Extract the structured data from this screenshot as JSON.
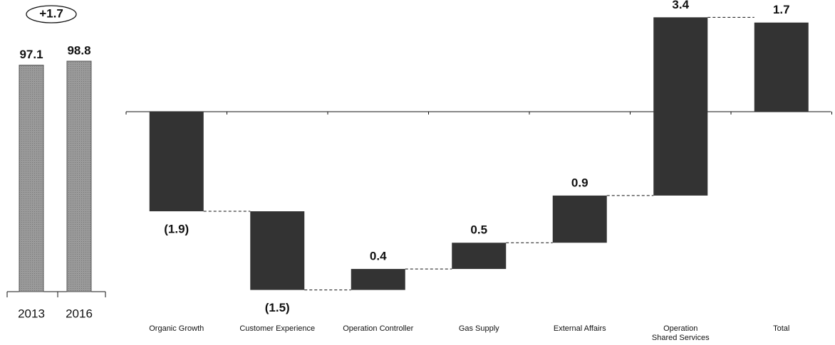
{
  "chart_data": [
    {
      "type": "bar",
      "categories": [
        "2013",
        "2016"
      ],
      "values": [
        97.1,
        98.8
      ],
      "annotation": "+1.7",
      "color": "#9a9a9a"
    },
    {
      "type": "waterfall",
      "categories": [
        "Organic Growth",
        "Customer Experience",
        "Operation Controller",
        "Gas Supply",
        "External Affairs",
        "Operation\nShared Services",
        "Total"
      ],
      "values": [
        -1.9,
        -1.5,
        0.4,
        0.5,
        0.9,
        3.4,
        1.7
      ],
      "value_labels": [
        "(1.9)",
        "(1.5)",
        "0.4",
        "0.5",
        "0.9",
        "3.4",
        "1.7"
      ],
      "color": "#333333"
    }
  ]
}
